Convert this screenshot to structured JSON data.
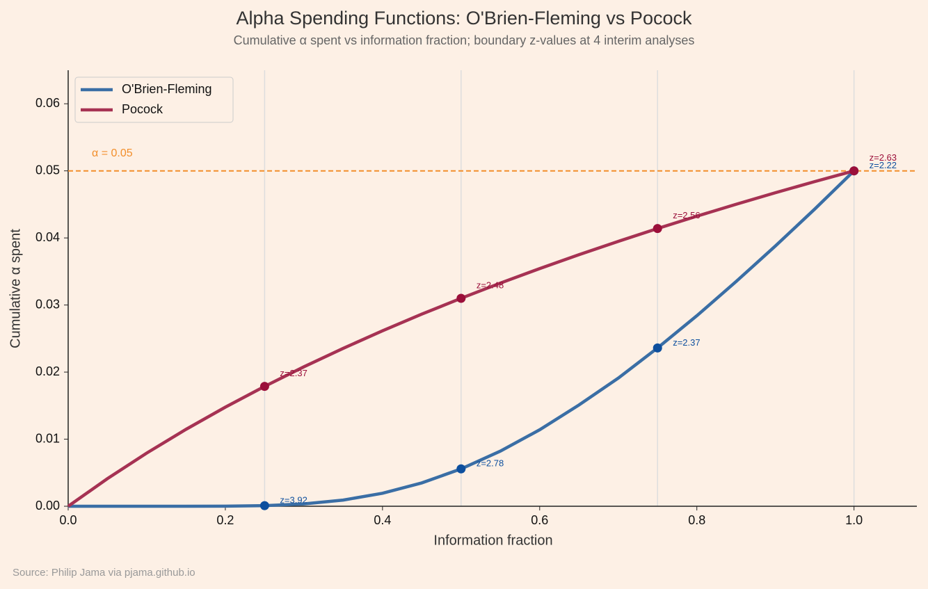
{
  "chart_data": {
    "type": "line",
    "title": "Alpha Spending Functions: O'Brien-Fleming vs Pocock",
    "subtitle": "Cumulative α spent vs information fraction; boundary z-values at 4 interim analyses",
    "x_label": "Information fraction",
    "y_label": "Cumulative α spent",
    "source": "Source: Philip Jama via pjama.github.io",
    "xlim": [
      0,
      1.08
    ],
    "ylim": [
      0,
      0.065
    ],
    "xticks": [
      {
        "value": 0,
        "label": "0.0"
      },
      0.2,
      0.4,
      0.6,
      0.8,
      {
        "value": 1,
        "label": "1.0"
      }
    ],
    "yticks": [
      {
        "value": 0,
        "label": "0.00"
      },
      {
        "value": 0.01,
        "label": "0.01"
      },
      {
        "value": 0.02,
        "label": "0.02"
      },
      {
        "value": 0.03,
        "label": "0.03"
      },
      {
        "value": 0.04,
        "label": "0.04"
      },
      {
        "value": 0.05,
        "label": "0.05"
      },
      {
        "value": 0.06,
        "label": "0.06"
      }
    ],
    "vlines": [
      0.25,
      0.5,
      0.75,
      1
    ],
    "hline": {
      "value": 0.05,
      "label": "α = 0.05",
      "color": "#f28e2b"
    },
    "legend": "upper left",
    "series": [
      {
        "name": "O'Brien-Fleming",
        "color": "#3a6ea5",
        "marker_color": "#0d4f9e",
        "x": [
          0,
          0.05,
          0.1,
          0.15,
          0.2,
          0.25,
          0.3,
          0.35,
          0.4,
          0.45,
          0.5,
          0.55,
          0.6,
          0.65,
          0.7,
          0.75,
          0.8,
          0.85,
          0.9,
          0.95,
          1
        ],
        "values": [
          0,
          0,
          0,
          4e-07,
          1.17e-05,
          8.85e-05,
          0.000346,
          0.000923,
          0.00194,
          0.00348,
          0.00557,
          0.00822,
          0.0114,
          0.0151,
          0.0191,
          0.0236,
          0.0284,
          0.0335,
          0.0388,
          0.0443,
          0.05
        ],
        "points": {
          "x": [
            0.25,
            0.5,
            0.75,
            1
          ],
          "values": [
            8.85e-05,
            0.00557,
            0.0236,
            0.05
          ],
          "labels": [
            "z=3.92",
            "z=2.78",
            "z=2.37",
            "z=2.22"
          ]
        }
      },
      {
        "name": "Pocock",
        "color": "#a63253",
        "marker_color": "#9b0f3a",
        "x": [
          0,
          0.05,
          0.1,
          0.15,
          0.2,
          0.25,
          0.3,
          0.35,
          0.4,
          0.45,
          0.5,
          0.55,
          0.6,
          0.65,
          0.7,
          0.75,
          0.8,
          0.85,
          0.9,
          0.95,
          1
        ],
        "values": [
          0,
          0.00412,
          0.00793,
          0.01147,
          0.01477,
          0.01787,
          0.02079,
          0.02354,
          0.02616,
          0.02864,
          0.031,
          0.03327,
          0.03543,
          0.0375,
          0.03949,
          0.0414,
          0.04324,
          0.04502,
          0.04674,
          0.0484,
          0.05
        ],
        "points": {
          "x": [
            0.25,
            0.5,
            0.75,
            1
          ],
          "values": [
            0.01787,
            0.031,
            0.0414,
            0.05
          ],
          "labels": [
            "z=2.37",
            "z=2.48",
            "z=2.56",
            "z=2.63"
          ]
        }
      }
    ]
  }
}
